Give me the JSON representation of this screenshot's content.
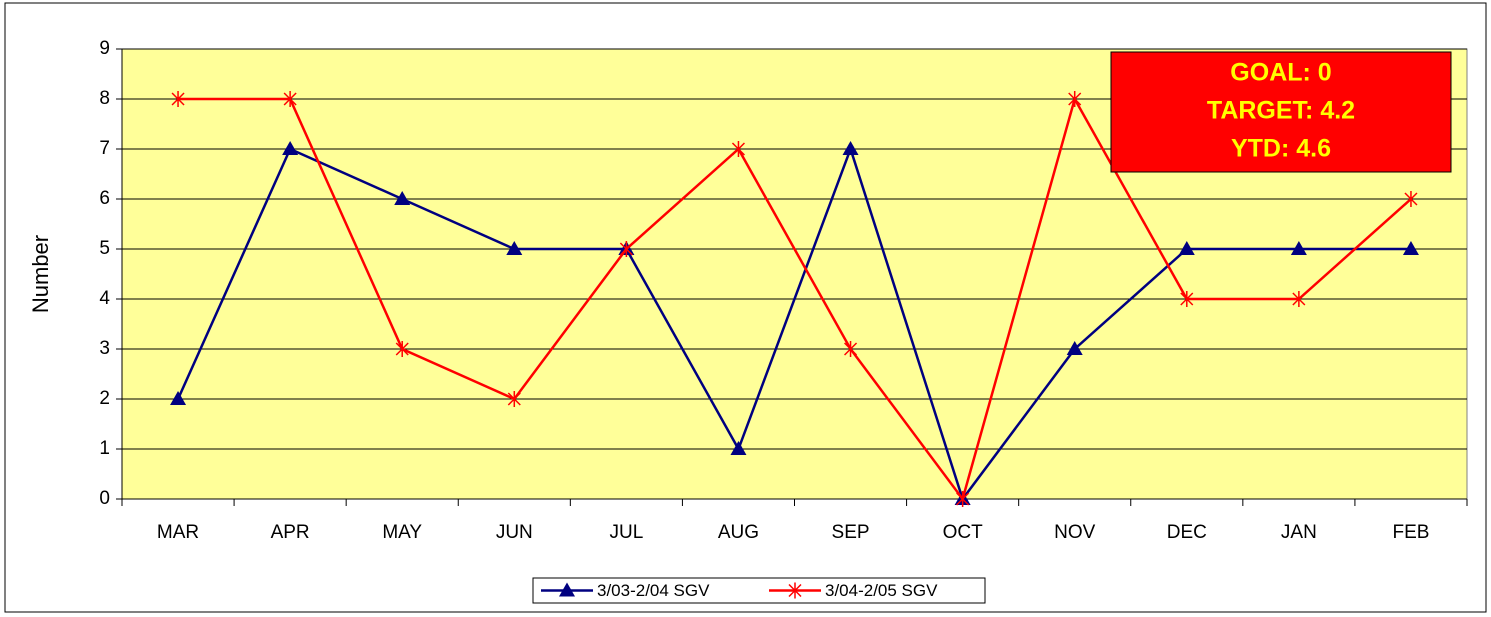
{
  "chart_data": {
    "type": "line",
    "y_label": "Number",
    "categories": [
      "MAR",
      "APR",
      "MAY",
      "JUN",
      "JUL",
      "AUG",
      "SEP",
      "OCT",
      "NOV",
      "DEC",
      "JAN",
      "FEB"
    ],
    "series": [
      {
        "name": "3/03-2/04 SGV",
        "color": "#000080",
        "marker": "triangle",
        "values": [
          2,
          7,
          6,
          5,
          5,
          1,
          7,
          0,
          3,
          5,
          5,
          5
        ]
      },
      {
        "name": "3/04-2/05 SGV",
        "color": "#ff0000",
        "marker": "star",
        "values": [
          8,
          8,
          3,
          2,
          5,
          7,
          3,
          0,
          8,
          4,
          4,
          6
        ]
      }
    ],
    "ylim": [
      0,
      9
    ],
    "yticks": [
      0,
      1,
      2,
      3,
      4,
      5,
      6,
      7,
      8,
      9
    ],
    "grid": true,
    "plot_background": "#ffff99",
    "annotation": {
      "lines": [
        "GOAL: 0",
        "TARGET: 4.2",
        "YTD: 4.6"
      ],
      "background": "#ff0000"
    },
    "legend": "bottom"
  }
}
